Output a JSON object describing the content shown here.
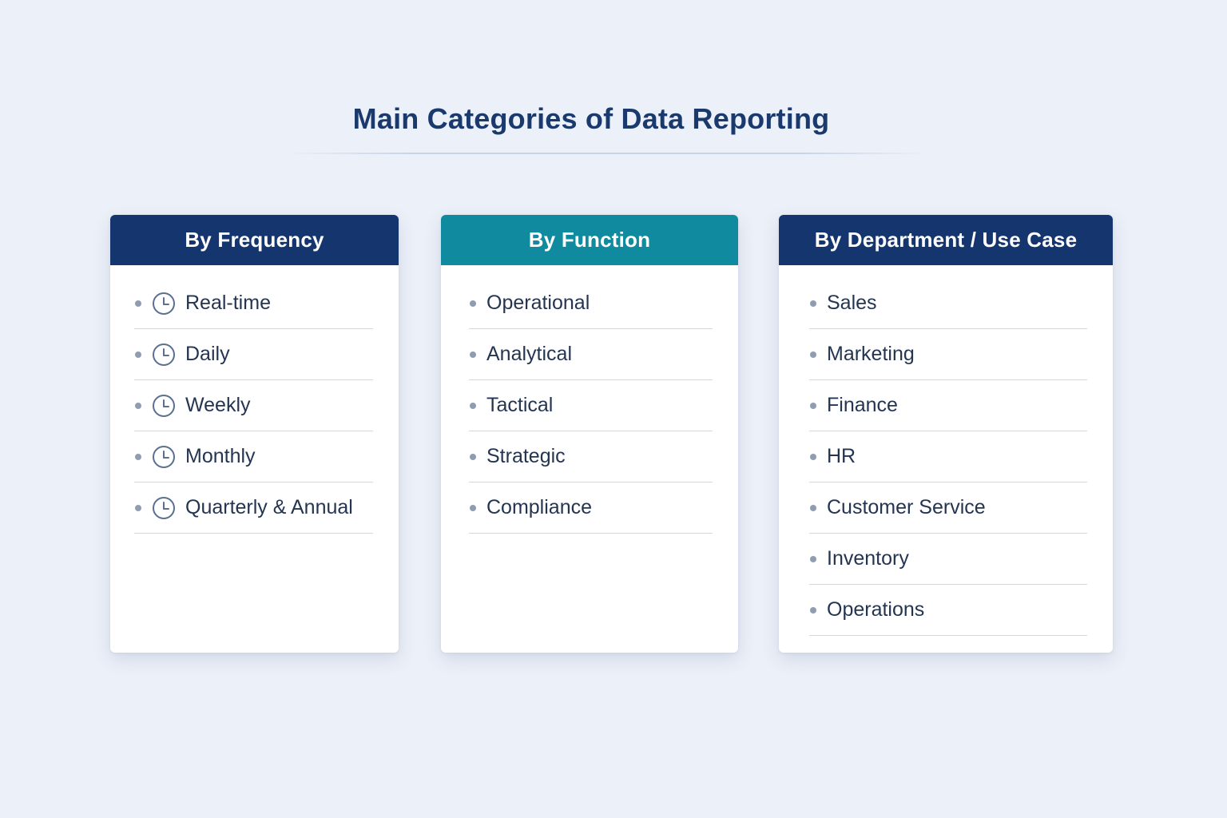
{
  "page": {
    "title": "Main Categories of Data Reporting"
  },
  "colors": {
    "background": "#ecf0f8",
    "title": "#1a3a6e",
    "header_navy": "#15356f",
    "header_teal": "#0f8a9e",
    "item_text": "#243552",
    "bullet": "#8f9cb2"
  },
  "cards": {
    "frequency": {
      "header": "By Frequency",
      "item_icon": "clock-icon",
      "items": [
        {
          "label": "Real-time"
        },
        {
          "label": "Daily"
        },
        {
          "label": "Weekly"
        },
        {
          "label": "Monthly"
        },
        {
          "label": "Quarterly & Annual"
        }
      ]
    },
    "function": {
      "header": "By Function",
      "items": [
        {
          "label": "Operational"
        },
        {
          "label": "Analytical"
        },
        {
          "label": "Tactical"
        },
        {
          "label": "Strategic"
        },
        {
          "label": "Compliance"
        }
      ]
    },
    "department": {
      "header": "By Department / Use Case",
      "items": [
        {
          "label": "Sales"
        },
        {
          "label": "Marketing"
        },
        {
          "label": "Finance"
        },
        {
          "label": "HR"
        },
        {
          "label": "Customer Service"
        },
        {
          "label": "Inventory"
        },
        {
          "label": "Operations"
        }
      ]
    }
  }
}
